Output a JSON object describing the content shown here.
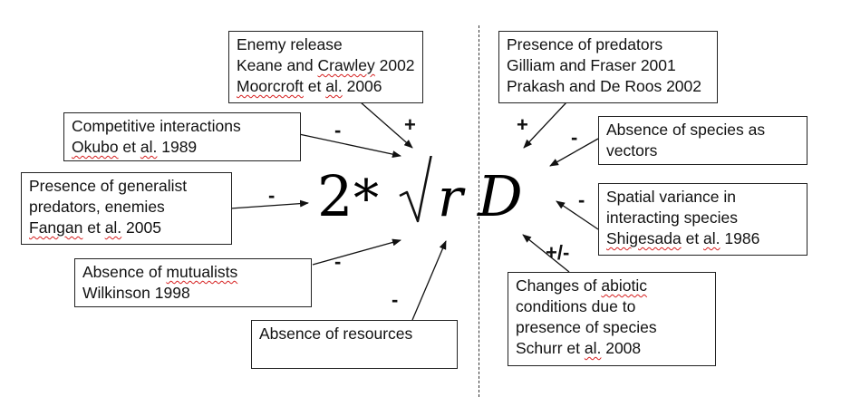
{
  "formula": {
    "two": "2",
    "times": "*",
    "sqrt": "√",
    "r": "r",
    "d": "D"
  },
  "boxes": {
    "enemy": {
      "l1": "Enemy release",
      "l2a": "Keane and ",
      "l2b": "Crawley",
      "l2c": " 2002",
      "l3a": "Moorcroft",
      "l3b": " et ",
      "l3c": "al.",
      "l3d": " 2006"
    },
    "predators": {
      "l1": "Presence of predators",
      "l2": "Gilliam and Fraser 2001",
      "l3": "Prakash and De Roos 2002"
    },
    "competitive": {
      "l1": "Competitive interactions",
      "l2a": "Okubo",
      "l2b": " et ",
      "l2c": "al.",
      "l2d": " 1989"
    },
    "vectors": {
      "l1": "Absence of species as",
      "l2": "vectors"
    },
    "generalist": {
      "l1": "Presence of generalist",
      "l2": "predators, enemies",
      "l3a": "Fangan",
      "l3b": " et ",
      "l3c": "al.",
      "l3d": " 2005"
    },
    "spatial": {
      "l1": "Spatial variance in",
      "l2": "interacting species",
      "l3a": "Shigesada",
      "l3b": " et ",
      "l3c": "al.",
      "l3d": " 1986"
    },
    "mutualists": {
      "l1a": "Absence of ",
      "l1b": "mutualists",
      "l2": "Wilkinson 1998"
    },
    "resources": {
      "l1": "Absence of resources"
    },
    "abiotic": {
      "l1a": "Changes of ",
      "l1b": "abiotic",
      "l2": "conditions due to",
      "l3": "presence of species",
      "l4a": "Schurr et ",
      "l4b": "al.",
      "l4c": " 2008"
    }
  },
  "signs": {
    "enemy": "+",
    "predators": "+",
    "competitive": "-",
    "vectors": "-",
    "generalist": "-",
    "spatial": "-",
    "mutualists": "-",
    "resources": "-",
    "abiotic": "+/-"
  }
}
